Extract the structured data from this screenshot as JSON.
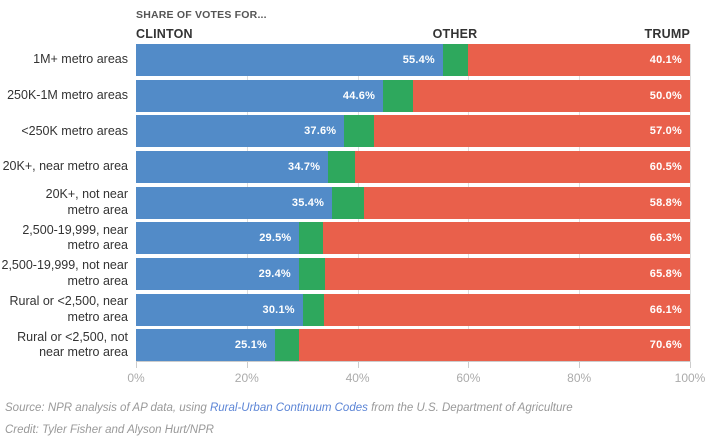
{
  "header": {
    "kicker": "SHARE OF VOTES FOR...",
    "clinton": "CLINTON",
    "other": "OTHER",
    "trump": "TRUMP"
  },
  "chart_data": {
    "type": "bar",
    "stacked": true,
    "orientation": "horizontal",
    "title": "Share of votes for Clinton, Other and Trump by community type",
    "categories": [
      "1M+ metro areas",
      "250K-1M metro areas",
      "<250K metro areas",
      "20K+, near metro area",
      "20K+, not near\nmetro area",
      "2,500-19,999, near\nmetro area",
      "2,500-19,999, not near\nmetro area",
      "Rural or <2,500, near\nmetro area",
      "Rural or <2,500, not\nnear metro area"
    ],
    "series": [
      {
        "name": "Clinton",
        "color": "#528bc8",
        "values": [
          55.4,
          44.6,
          37.6,
          34.7,
          35.4,
          29.5,
          29.4,
          30.1,
          25.1
        ],
        "labels": [
          "55.4%",
          "44.6%",
          "37.6%",
          "34.7%",
          "35.4%",
          "29.5%",
          "29.4%",
          "30.1%",
          "25.1%"
        ],
        "show_labels": true
      },
      {
        "name": "Other",
        "color": "#2ea85d",
        "values": [
          4.5,
          5.4,
          5.4,
          4.8,
          5.8,
          4.2,
          4.8,
          3.8,
          4.3
        ],
        "labels": [],
        "show_labels": false
      },
      {
        "name": "Trump",
        "color": "#e9604b",
        "values": [
          40.1,
          50.0,
          57.0,
          60.5,
          58.8,
          66.3,
          65.8,
          66.1,
          70.6
        ],
        "labels": [
          "40.1%",
          "50.0%",
          "57.0%",
          "60.5%",
          "58.8%",
          "66.3%",
          "65.8%",
          "66.1%",
          "70.6%"
        ],
        "show_labels": true
      }
    ],
    "xlim": [
      0,
      100
    ],
    "xticks": [
      "0%",
      "20%",
      "40%",
      "60%",
      "80%",
      "100%"
    ],
    "grid": true,
    "legend_position": "top"
  },
  "footer": {
    "source_prefix": "Source: NPR analysis of AP data, using ",
    "source_link": "Rural-Urban Continuum Codes",
    "source_suffix": " from the U.S. Department of Agriculture",
    "credit": "Credit: Tyler Fisher and Alyson Hurt/NPR",
    "link_color": "#5c85d6"
  }
}
